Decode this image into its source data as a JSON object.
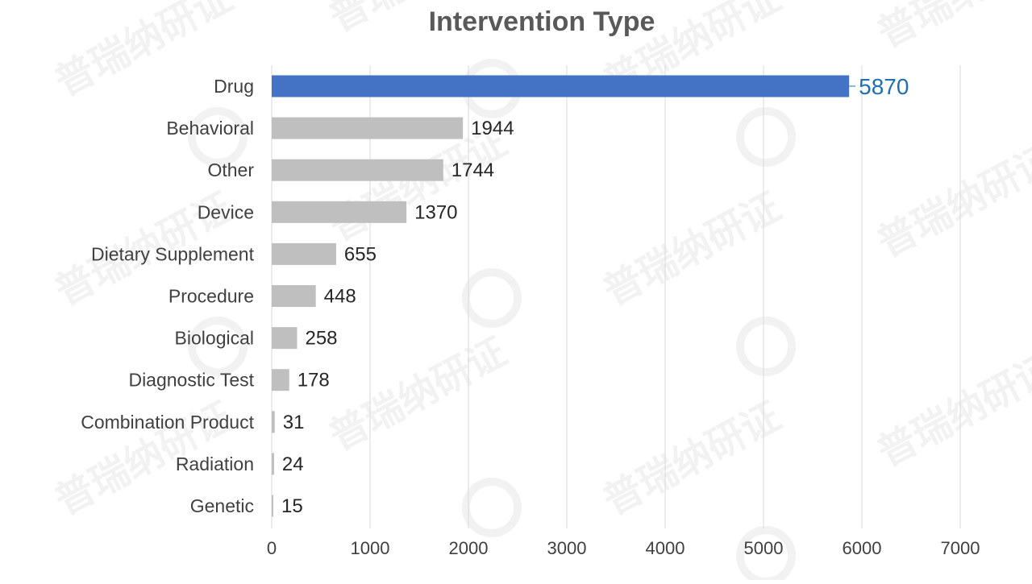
{
  "chart_data": {
    "type": "bar",
    "orientation": "horizontal",
    "title": "Intervention Type",
    "xlabel": "",
    "ylabel": "",
    "categories": [
      "Drug",
      "Behavioral",
      "Other",
      "Device",
      "Dietary Supplement",
      "Procedure",
      "Biological",
      "Diagnostic Test",
      "Combination Product",
      "Radiation",
      "Genetic"
    ],
    "values": [
      5870,
      1944,
      1744,
      1370,
      655,
      448,
      258,
      178,
      31,
      24,
      15
    ],
    "xlim": [
      0,
      7000
    ],
    "xticks": [
      0,
      1000,
      2000,
      3000,
      4000,
      5000,
      6000,
      7000
    ],
    "grid": "vertical",
    "legend": "none",
    "highlight_index": 0,
    "colors": {
      "highlight": "#4472C4",
      "default": "#BFBFBF",
      "highlight_label": "#1F6FB2",
      "label": "#404040",
      "grid": "#D9D9D9",
      "title": "#595959"
    }
  },
  "watermark": {
    "text": "普瑞纳研证",
    "mark": "®"
  }
}
